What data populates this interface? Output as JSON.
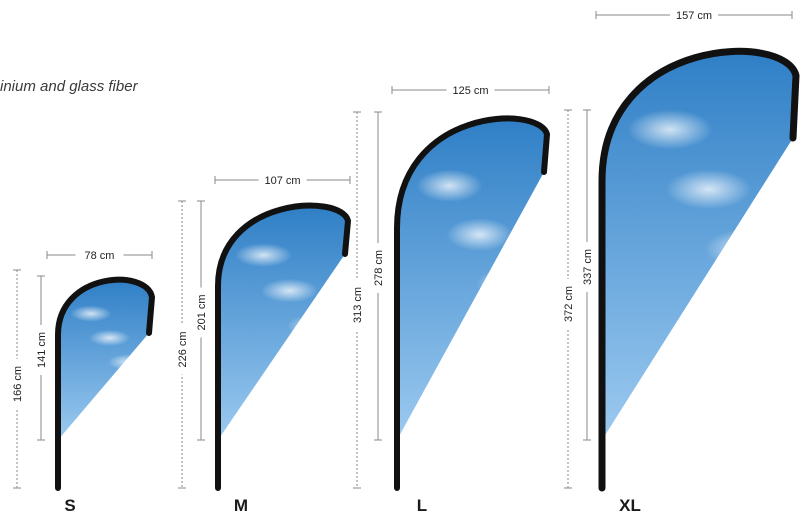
{
  "caption": "inium and glass fiber",
  "flags": [
    {
      "size": "S",
      "width": "78 cm",
      "total_height": "166 cm",
      "sail_height": "141 cm"
    },
    {
      "size": "M",
      "width": "107 cm",
      "total_height": "226 cm",
      "sail_height": "201 cm"
    },
    {
      "size": "L",
      "width": "125 cm",
      "total_height": "313 cm",
      "sail_height": "278 cm"
    },
    {
      "size": "XL",
      "width": "157 cm",
      "total_height": "372 cm",
      "sail_height": "337 cm"
    }
  ],
  "colors": {
    "pole": "#111111",
    "sky_top": "#2f7fc6",
    "sky_bottom": "#9ccaf0",
    "dimension_line": "#8a8a8a",
    "text": "#222222"
  }
}
